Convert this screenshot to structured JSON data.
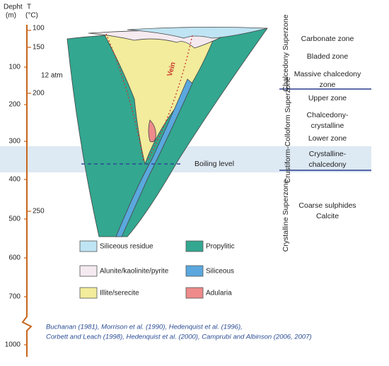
{
  "axis_header": {
    "depth": "Depht",
    "depth_unit": "(m)",
    "temperature": "T",
    "temperature_unit": "(°C)"
  },
  "depth_labels": [
    "100",
    "200",
    "300",
    "400",
    "500",
    "600",
    "700",
    "1000"
  ],
  "temperature_labels": [
    "100",
    "150",
    "200",
    "250"
  ],
  "pressure_label": "12 atm",
  "vein_label": "Vein",
  "boiling_level": "Boiling level",
  "superzones": [
    {
      "name": "Chalcedony Superzone",
      "zones": [
        [
          "Carbonate zone"
        ],
        [
          "Bladed zone"
        ],
        [
          "Massive chalcedony",
          "zone"
        ]
      ]
    },
    {
      "name": "Crustiform-Colloform Superzone",
      "zones": [
        [
          "Upper zone"
        ],
        [
          "Chalcedony-",
          "crystalline"
        ],
        [
          "Lower zone"
        ],
        [
          "Crystalline-",
          "chalcedony"
        ]
      ]
    },
    {
      "name": "Crystalline Superzone",
      "zones": [
        [
          "Coarse sulphides"
        ],
        [
          "Calcite"
        ]
      ]
    }
  ],
  "legend": [
    "Siliceous residue",
    "Propylitic",
    "Alunite/kaolinite/pyrite",
    "Siliceous",
    "Illite/serecite",
    "Adularia"
  ],
  "references": [
    "Buchanan (1981), Morrison et al. (1990), Hedenquist et al. (1996),",
    "Corbett and Leach (1998), Hedenquist et al. (2000), Camprubí and Albinson (2006, 2007)"
  ]
}
